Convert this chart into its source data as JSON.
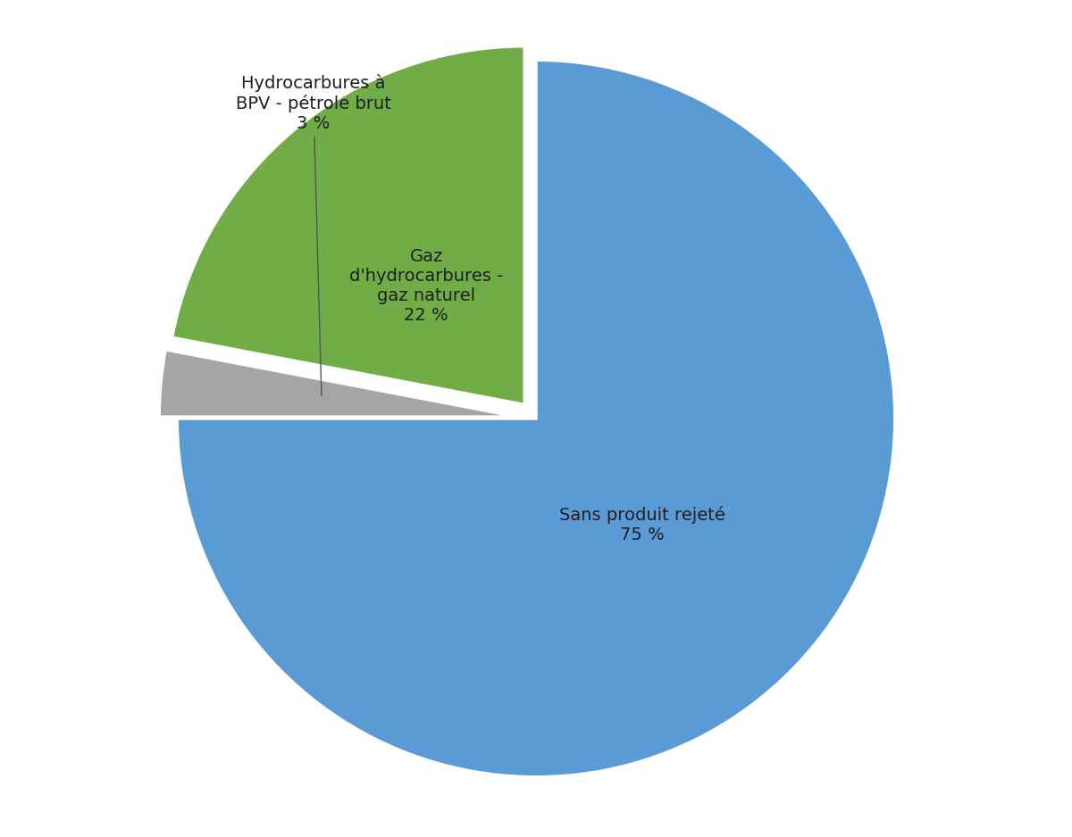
{
  "slices": [
    {
      "label": "Sans produit rejeté\n75 %",
      "value": 75,
      "color": "#5B9BD5",
      "explode": 0.0
    },
    {
      "label": "Hydrocarbures à\nBPV - pétrole brut\n3 %",
      "value": 3,
      "color": "#A5A5A5",
      "explode": 0.05
    },
    {
      "label": "Gaz\nd'hydrocarbures -\ngaz naturel\n22 %",
      "value": 22,
      "color": "#70AD47",
      "explode": 0.05
    }
  ],
  "startangle": 90,
  "counterclock": false,
  "background_color": "#FFFFFF",
  "text_color": "#1F1F1F",
  "fontsize": 14,
  "wedge_linewidth": 2.5,
  "wedge_linecolor": "#FFFFFF"
}
